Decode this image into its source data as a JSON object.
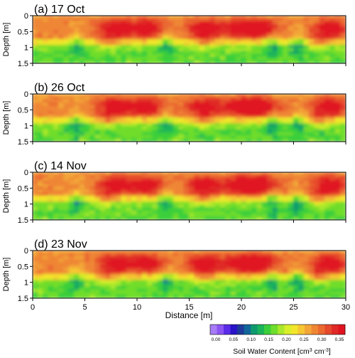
{
  "chart_data": {
    "type": "heatmap",
    "panels": [
      {
        "label": "(a) 17 Oct",
        "seed": 1
      },
      {
        "label": "(b) 26 Oct",
        "seed": 2
      },
      {
        "label": "(c) 14 Nov",
        "seed": 3
      },
      {
        "label": "(d) 23 Nov",
        "seed": 4
      }
    ],
    "ylabel": "Depth [m]",
    "xlabel": "Distance [m]",
    "xlim": [
      0,
      30
    ],
    "ylim": [
      0,
      1.5
    ],
    "x_ticks": [
      "0",
      "5",
      "10",
      "15",
      "20",
      "25",
      "30"
    ],
    "y_ticks": [
      "0",
      "0.5",
      "1",
      "1.5"
    ],
    "colorbar": {
      "label_prefix": "Soil Water Content [cm",
      "sup1": "3",
      "label_mid": " cm",
      "sup2": "-3",
      "label_suffix": "]",
      "ticks": [
        "0.00",
        "0.05",
        "0.10",
        "0.15",
        "0.20",
        "0.25",
        "0.30",
        "0.35"
      ],
      "colors": [
        "#a77cf6",
        "#8b54f3",
        "#5a2be8",
        "#2a14c8",
        "#1f3a9a",
        "#11669a",
        "#0f9a6e",
        "#1bb45a",
        "#3bcf3b",
        "#6fdd2c",
        "#a9e82a",
        "#d9ef2a",
        "#f2e62b",
        "#f6c633",
        "#f3a637",
        "#ef8634",
        "#ea6930",
        "#e6482c",
        "#e02a27",
        "#e01420"
      ]
    },
    "hotspots_x_m": [
      8,
      11,
      16.5,
      20,
      22,
      28.5
    ],
    "wet_zone_depth_m": [
      0.1,
      0.7
    ],
    "dry_zone_depth_m": [
      0.9,
      1.5
    ]
  }
}
